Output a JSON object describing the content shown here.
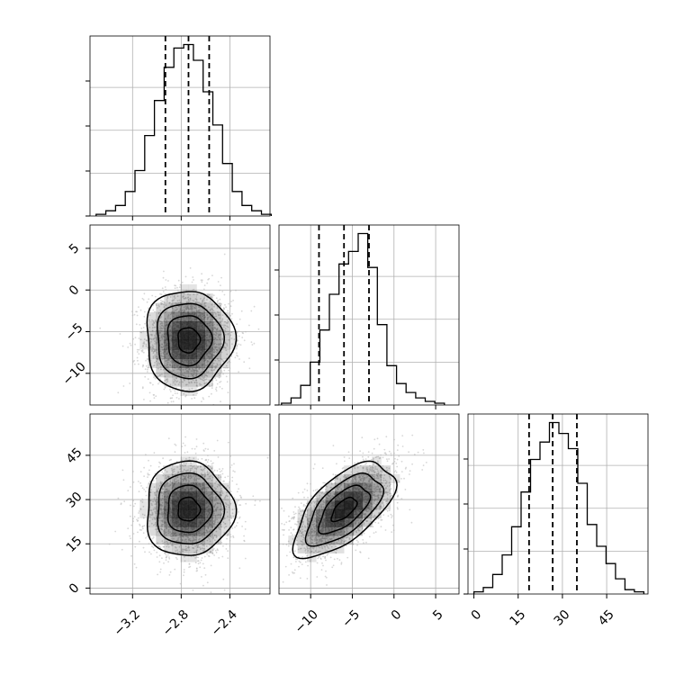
{
  "chart_data": {
    "type": "corner",
    "parameters": [
      {
        "range": [
          -3.55,
          -2.07
        ],
        "tick_labels": [
          "−3.2",
          "−2.8",
          "−2.4"
        ],
        "tick_values": [
          -3.2,
          -2.8,
          -2.4
        ],
        "quantiles": [
          -2.93,
          -2.74,
          -2.57
        ],
        "histogram": {
          "bin_edges": [
            -3.5,
            -3.42,
            -3.34,
            -3.26,
            -3.18,
            -3.1,
            -3.02,
            -2.94,
            -2.86,
            -2.78,
            -2.7,
            -2.62,
            -2.54,
            -2.46,
            -2.38,
            -2.3,
            -2.22,
            -2.14,
            -2.06
          ],
          "counts": [
            1,
            3,
            6,
            14,
            26,
            46,
            66,
            85,
            96,
            98,
            89,
            71,
            52,
            30,
            14,
            6,
            3,
            1
          ]
        }
      },
      {
        "range": [
          -13.8,
          7.8
        ],
        "tick_labels": [
          "−10",
          "−5",
          "0",
          "5"
        ],
        "tick_values": [
          -10,
          -5,
          0,
          5
        ],
        "quantiles": [
          -9.0,
          -6.0,
          -3.0
        ],
        "histogram": {
          "bin_edges": [
            -13.5,
            -12.35,
            -11.2,
            -10.05,
            -8.9,
            -7.75,
            -6.6,
            -5.45,
            -4.3,
            -3.15,
            -2.0,
            -0.85,
            0.3,
            1.45,
            2.6,
            3.75,
            4.9,
            6.05
          ],
          "counts": [
            1,
            4,
            11,
            24,
            42,
            62,
            79,
            86,
            96,
            77,
            45,
            22,
            12,
            7,
            4,
            2,
            1
          ]
        }
      },
      {
        "range": [
          -2,
          59
        ],
        "tick_labels": [
          "0",
          "15",
          "30",
          "45"
        ],
        "tick_values": [
          0,
          15,
          30,
          45
        ],
        "quantiles": [
          18.7,
          26.7,
          34.9
        ],
        "histogram": {
          "bin_edges": [
            0.0,
            3.2,
            6.4,
            9.6,
            12.8,
            16.0,
            19.2,
            22.4,
            25.6,
            28.8,
            32.0,
            35.2,
            38.4,
            41.6,
            44.8,
            48.0,
            51.2,
            54.4,
            57.6
          ],
          "counts": [
            1,
            3,
            9,
            18,
            31,
            47,
            62,
            70,
            79,
            74,
            67,
            51,
            32,
            22,
            14,
            7,
            2,
            1
          ]
        }
      }
    ],
    "scatter_cloud": {
      "means": [
        -2.74,
        -6.0,
        26.7
      ],
      "sds": [
        0.18,
        3.0,
        8.0
      ],
      "correlations": {
        "0-1": 0.0,
        "0-2": 0.0,
        "1-2": 0.62
      }
    },
    "contour_levels_sigma": [
      0.5,
      1.0,
      1.5,
      2.0
    ],
    "grid": true,
    "colors": {
      "line": "#000000",
      "points": "#b7b7b7",
      "grid": "#b0b0b0",
      "density": "#000000"
    }
  }
}
